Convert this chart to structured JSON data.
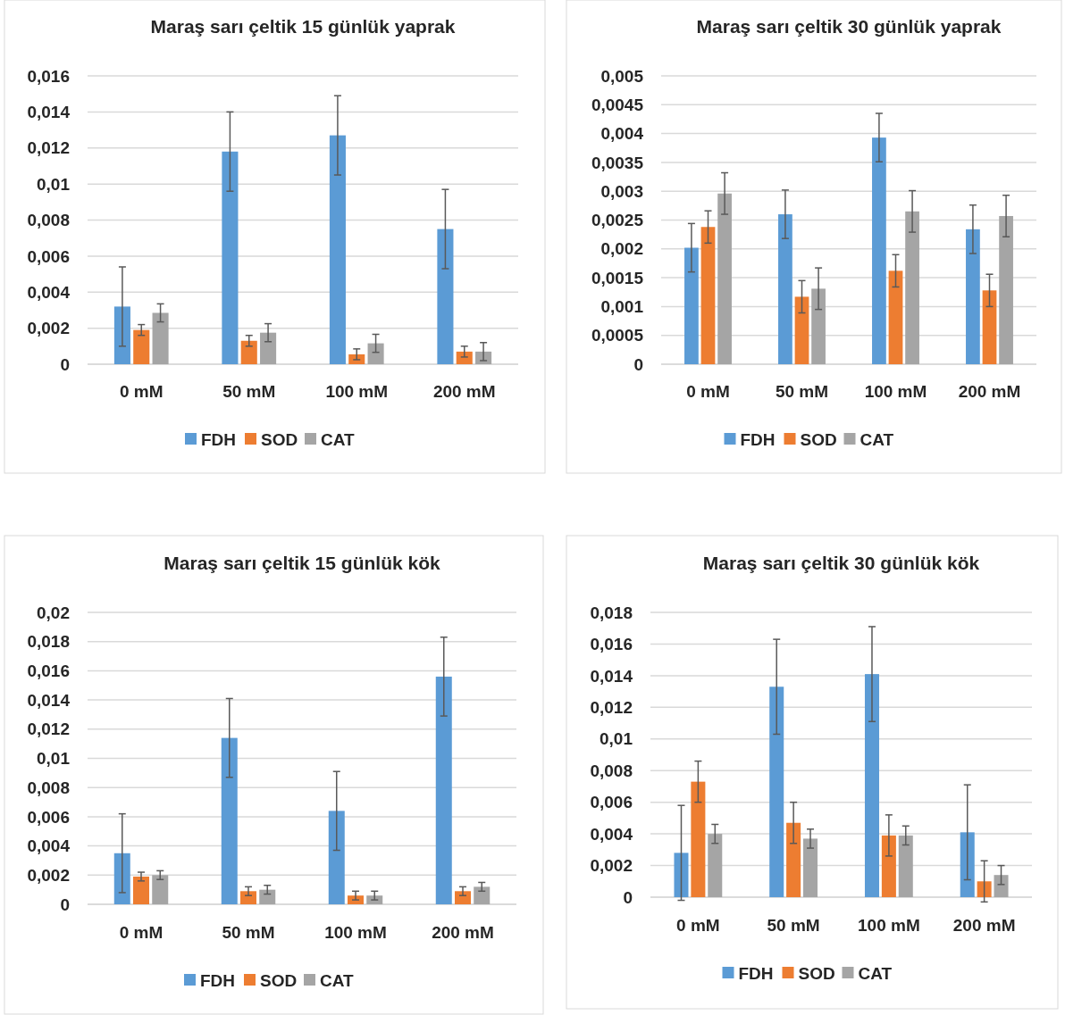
{
  "chart_data": [
    {
      "type": "bar",
      "title": "Maraş sarı çeltik 15 günlük yaprak",
      "categories": [
        "0 mM",
        "50 mM",
        "100 mM",
        "200 mM"
      ],
      "series": [
        {
          "name": "FDH",
          "color": "#5b9bd5",
          "values": [
            0.0032,
            0.0118,
            0.0127,
            0.0075
          ],
          "errors": [
            0.0022,
            0.0022,
            0.0022,
            0.0022
          ]
        },
        {
          "name": "SOD",
          "color": "#ed7d31",
          "values": [
            0.0019,
            0.0013,
            0.00055,
            0.0007
          ],
          "errors": [
            0.0003,
            0.0003,
            0.0003,
            0.0003
          ]
        },
        {
          "name": "CAT",
          "color": "#a5a5a5",
          "values": [
            0.00285,
            0.00175,
            0.00116,
            0.0007
          ],
          "errors": [
            0.0005,
            0.0005,
            0.0005,
            0.0005
          ]
        }
      ],
      "ylim": [
        0,
        0.016
      ],
      "yticks": [
        {
          "value": 0,
          "label": "0"
        },
        {
          "value": 0.002,
          "label": "0,002"
        },
        {
          "value": 0.004,
          "label": "0,004"
        },
        {
          "value": 0.006,
          "label": "0,006"
        },
        {
          "value": 0.008,
          "label": "0,008"
        },
        {
          "value": 0.01,
          "label": "0,01"
        },
        {
          "value": 0.012,
          "label": "0,012"
        },
        {
          "value": 0.014,
          "label": "0,014"
        },
        {
          "value": 0.016,
          "label": "0,016"
        }
      ],
      "grid": "y",
      "legend": "bottom"
    },
    {
      "type": "bar",
      "title": "Maraş sarı çeltik 30 günlük yaprak",
      "categories": [
        "0 mM",
        "50 mM",
        "100 mM",
        "200 mM"
      ],
      "series": [
        {
          "name": "FDH",
          "color": "#5b9bd5",
          "values": [
            0.00202,
            0.0026,
            0.00393,
            0.00234
          ],
          "errors": [
            0.00042,
            0.00042,
            0.00042,
            0.00042
          ]
        },
        {
          "name": "SOD",
          "color": "#ed7d31",
          "values": [
            0.00238,
            0.00117,
            0.00162,
            0.00128
          ],
          "errors": [
            0.00028,
            0.00028,
            0.00028,
            0.00028
          ]
        },
        {
          "name": "CAT",
          "color": "#a5a5a5",
          "values": [
            0.00296,
            0.00131,
            0.00265,
            0.00257
          ],
          "errors": [
            0.00036,
            0.00036,
            0.00036,
            0.00036
          ]
        }
      ],
      "ylim": [
        0,
        0.005
      ],
      "yticks": [
        {
          "value": 0,
          "label": "0"
        },
        {
          "value": 0.0005,
          "label": "0,0005"
        },
        {
          "value": 0.001,
          "label": "0,001"
        },
        {
          "value": 0.0015,
          "label": "0,0015"
        },
        {
          "value": 0.002,
          "label": "0,002"
        },
        {
          "value": 0.0025,
          "label": "0,0025"
        },
        {
          "value": 0.003,
          "label": "0,003"
        },
        {
          "value": 0.0035,
          "label": "0,0035"
        },
        {
          "value": 0.004,
          "label": "0,004"
        },
        {
          "value": 0.0045,
          "label": "0,0045"
        },
        {
          "value": 0.005,
          "label": "0,005"
        }
      ],
      "grid": "y",
      "legend": "bottom"
    },
    {
      "type": "bar",
      "title": "Maraş sarı çeltik 15 günlük kök",
      "categories": [
        "0 mM",
        "50 mM",
        "100 mM",
        "200 mM"
      ],
      "series": [
        {
          "name": "FDH",
          "color": "#5b9bd5",
          "values": [
            0.0035,
            0.0114,
            0.0064,
            0.0156
          ],
          "errors": [
            0.0027,
            0.0027,
            0.0027,
            0.0027
          ]
        },
        {
          "name": "SOD",
          "color": "#ed7d31",
          "values": [
            0.0019,
            0.0009,
            0.0006,
            0.0009
          ],
          "errors": [
            0.0003,
            0.0003,
            0.0003,
            0.0003
          ]
        },
        {
          "name": "CAT",
          "color": "#a5a5a5",
          "values": [
            0.002,
            0.001,
            0.0006,
            0.0012
          ],
          "errors": [
            0.0003,
            0.0003,
            0.0003,
            0.0003
          ]
        }
      ],
      "ylim": [
        0,
        0.02
      ],
      "yticks": [
        {
          "value": 0,
          "label": "0"
        },
        {
          "value": 0.002,
          "label": "0,002"
        },
        {
          "value": 0.004,
          "label": "0,004"
        },
        {
          "value": 0.006,
          "label": "0,006"
        },
        {
          "value": 0.008,
          "label": "0,008"
        },
        {
          "value": 0.01,
          "label": "0,01"
        },
        {
          "value": 0.012,
          "label": "0,012"
        },
        {
          "value": 0.014,
          "label": "0,014"
        },
        {
          "value": 0.016,
          "label": "0,016"
        },
        {
          "value": 0.018,
          "label": "0,018"
        },
        {
          "value": 0.02,
          "label": "0,02"
        }
      ],
      "grid": "y",
      "legend": "bottom"
    },
    {
      "type": "bar",
      "title": "Maraş sarı çeltik 30 günlük kök",
      "categories": [
        "0 mM",
        "50 mM",
        "100 mM",
        "200 mM"
      ],
      "series": [
        {
          "name": "FDH",
          "color": "#5b9bd5",
          "values": [
            0.0028,
            0.0133,
            0.0141,
            0.0041
          ],
          "errors": [
            0.003,
            0.003,
            0.003,
            0.003
          ]
        },
        {
          "name": "SOD",
          "color": "#ed7d31",
          "values": [
            0.0073,
            0.0047,
            0.0039,
            0.001
          ],
          "errors": [
            0.0013,
            0.0013,
            0.0013,
            0.0013
          ]
        },
        {
          "name": "CAT",
          "color": "#a5a5a5",
          "values": [
            0.004,
            0.0037,
            0.0039,
            0.0014
          ],
          "errors": [
            0.0006,
            0.0006,
            0.0006,
            0.0006
          ]
        }
      ],
      "ylim": [
        0,
        0.018
      ],
      "yticks": [
        {
          "value": 0,
          "label": "0"
        },
        {
          "value": 0.002,
          "label": "0,002"
        },
        {
          "value": 0.004,
          "label": "0,004"
        },
        {
          "value": 0.006,
          "label": "0,006"
        },
        {
          "value": 0.008,
          "label": "0,008"
        },
        {
          "value": 0.01,
          "label": "0,01"
        },
        {
          "value": 0.012,
          "label": "0,012"
        },
        {
          "value": 0.014,
          "label": "0,014"
        },
        {
          "value": 0.016,
          "label": "0,016"
        },
        {
          "value": 0.018,
          "label": "0,018"
        }
      ],
      "grid": "y",
      "legend": "bottom"
    }
  ]
}
